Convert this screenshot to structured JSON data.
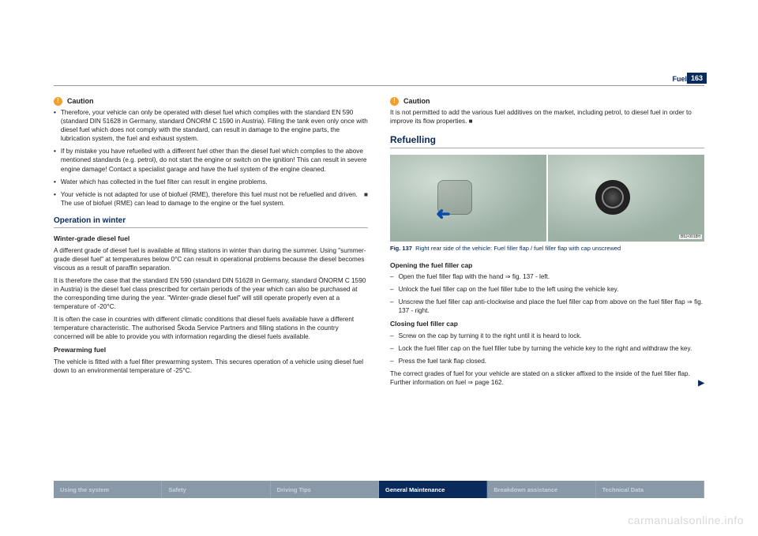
{
  "header": {
    "section": "Fuel",
    "page": "163"
  },
  "left": {
    "caution": "Caution",
    "b1": "Therefore, your vehicle can only be operated with diesel fuel which complies with the standard EN 590 (standard DIN 51628 in Germany, standard ÖNORM C 1590 in Austria). Filling the tank even only once with diesel fuel which does not comply with the standard, can result in damage to the engine parts, the lubrication system, the fuel and exhaust system.",
    "b2": "If by mistake you have refuelled with a different fuel other than the diesel fuel which complies to the above mentioned standards (e.g. petrol), do not start the engine or switch on the ignition! This can result in severe engine damage! Contact a specialist garage and have the fuel system of the engine cleaned.",
    "b3": "Water which has collected in the fuel filter can result in engine problems.",
    "b4": "Your vehicle is not adapted for use of biofuel (RME), therefore this fuel must not be refuelled and driven. The use of biofuel (RME) can lead to damage to the engine or the fuel system.",
    "winter_h": "Operation in winter",
    "winter_sub": "Winter-grade diesel fuel",
    "w1": "A different grade of diesel fuel is available at filling stations in winter than during the summer. Using \"summer-grade diesel fuel\" at temperatures below 0°C can result in operational problems because the diesel becomes viscous as a result of paraffin separation.",
    "w2": "It is therefore the case that the standard EN 590 (standard DIN 51628 in Germany, standard ÖNORM C 1590 in Austria) is the diesel fuel class prescribed for certain periods of the year which can also be purchased at the corresponding time during the year. \"Winter-grade diesel fuel\" will still operate properly even at a temperature of -20°C.",
    "w3": "It is often the case in countries with different climatic conditions that diesel fuels available have a different temperature characteristic. The authorised Škoda Service Partners and filling stations in the country concerned will be able to provide you with information regarding the diesel fuels available.",
    "prewarm_sub": "Prewarming fuel",
    "prewarm_txt": "The vehicle is fitted with a fuel filter prewarming system. This secures operation of a vehicle using diesel fuel down to an environmental temperature of -25°C."
  },
  "right": {
    "caution": "Caution",
    "caution_txt": "It is not permitted to add the various fuel additives on the market, including petrol, to diesel fuel in order to improve its flow properties.",
    "refuel_h": "Refuelling",
    "fig_label": "B5J-0018H",
    "fig_caption_b": "Fig. 137",
    "fig_caption": "Right rear side of the vehicle: Fuel filler flap / fuel filler flap with cap unscrewed",
    "open_h": "Opening the fuel filler cap",
    "o1": "Open the fuel filler flap with the hand ⇒ fig. 137 - left.",
    "o2": "Unlock the fuel filler cap on the fuel filler tube to the left using the vehicle key.",
    "o3": "Unscrew the fuel filler cap anti-clockwise and place the fuel filler cap from above on the fuel filler flap ⇒ fig. 137 - right.",
    "close_h": "Closing fuel filler cap",
    "c1": "Screw on the cap by turning it to the right until it is heard to lock.",
    "c2": "Lock the fuel filler cap on the fuel filler tube by turning the vehicle key to the right and withdraw the key.",
    "c3": "Press the fuel tank flap closed.",
    "final": "The correct grades of fuel for your vehicle are stated on a sticker affixed to the inside of the fuel filler flap. Further information on fuel ⇒ page 162."
  },
  "nav": {
    "i1": "Using the system",
    "i2": "Safety",
    "i3": "Driving Tips",
    "i4": "General Maintenance",
    "i5": "Breakdown assistance",
    "i6": "Technical Data"
  },
  "watermark": "carmanualsonline.info"
}
